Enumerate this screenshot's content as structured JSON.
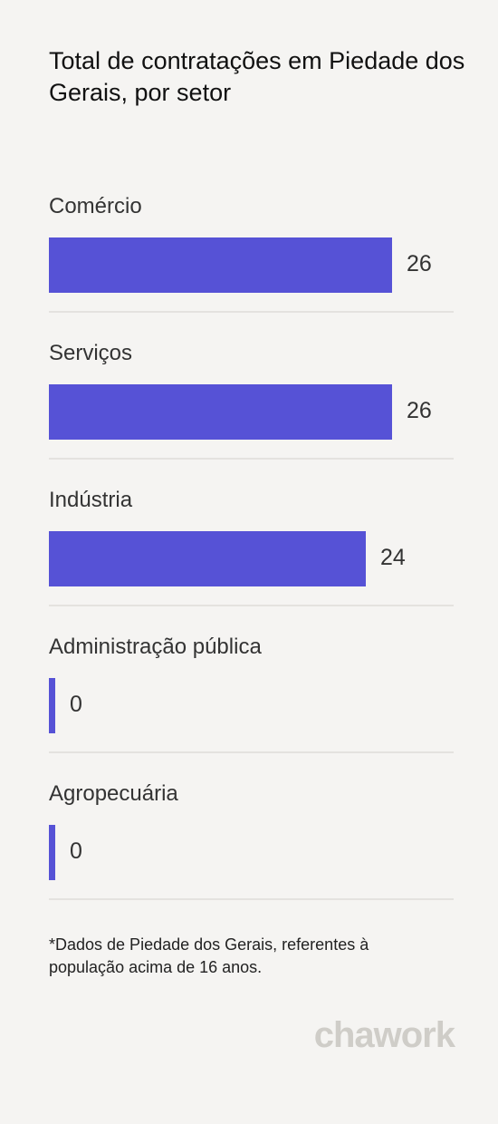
{
  "title": "Total de contratações em Piedade dos Gerais, por setor",
  "chart_data": {
    "type": "bar",
    "orientation": "horizontal",
    "title": "Total de contratações em Piedade dos Gerais, por setor",
    "categories": [
      "Comércio",
      "Serviços",
      "Indústria",
      "Administração pública",
      "Agropecuária"
    ],
    "values": [
      26,
      26,
      24,
      0,
      0
    ],
    "value_labels": [
      "26",
      "26",
      "24",
      "0",
      "0"
    ],
    "color": "#5652d6",
    "xlim": [
      0,
      26
    ],
    "grid": false,
    "legend": "none"
  },
  "footnote": "*Dados de Piedade dos Gerais, referentes à população acima de 16 anos.",
  "brand": "chawork"
}
